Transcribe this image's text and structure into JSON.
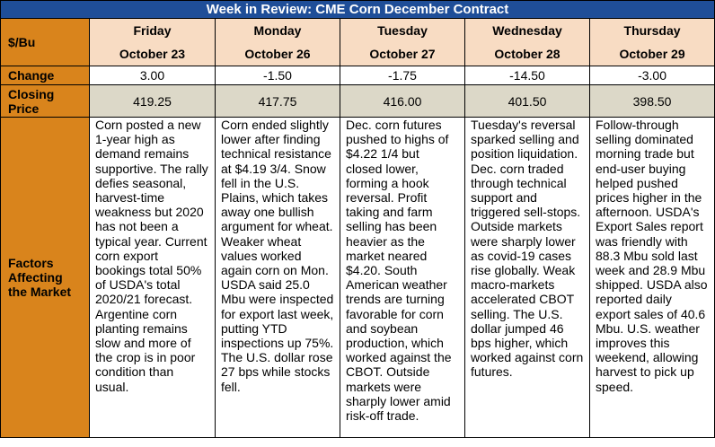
{
  "title": "Week in Review: CME Corn December Contract",
  "unit_label": "$/Bu",
  "days": [
    {
      "day": "Friday",
      "date": "October 23"
    },
    {
      "day": "Monday",
      "date": "October 26"
    },
    {
      "day": "Tuesday",
      "date": "October 27"
    },
    {
      "day": "Wednesday",
      "date": "October 28"
    },
    {
      "day": "Thursday",
      "date": "October 29"
    }
  ],
  "change_label": "Change",
  "changes": [
    "3.00",
    "-1.50",
    "-1.75",
    "-14.50",
    "-3.00"
  ],
  "closing_label_line1": "Closing",
  "closing_label_line2": "Price",
  "closing": [
    "419.25",
    "417.75",
    "416.00",
    "401.50",
    "398.50"
  ],
  "factors_label_line1": "Factors",
  "factors_label_line2": "Affecting",
  "factors_label_line3": "the Market",
  "factors": [
    "Corn posted a new 1-year high as demand remains supportive. The rally defies seasonal, harvest-time weakness but 2020 has not been a typical year. Current corn export bookings total 50% of USDA's total 2020/21 forecast. Argentine corn planting remains slow and more of the crop is in poor condition than usual.",
    "Corn ended slightly lower after finding technical resistance at $4.19 3/4. Snow fell in the U.S. Plains, which takes away one bullish argument for wheat. Weaker wheat values worked again corn on Mon. USDA said 25.0 Mbu were inspected for export last week, putting YTD inspections up 75%. The U.S. dollar rose 27 bps while stocks fell.",
    "Dec. corn futures pushed to highs of $4.22 1/4 but closed lower, forming a hook reversal. Profit taking and farm selling has been heavier as the market neared $4.20. South American weather trends are turning favorable for corn and soybean production, which worked against the CBOT. Outside markets were sharply lower amid risk-off trade.",
    "Tuesday's reversal sparked selling and position liquidation. Dec. corn traded through technical support and triggered sell-stops. Outside markets were sharply lower as covid-19 cases rise globally. Weak macro-markets accelerated CBOT selling. The U.S. dollar jumped 46 bps higher, which worked against corn futures.",
    "Follow-through selling dominated morning trade but end-user buying helped pushed prices higher in the afternoon. USDA's Export Sales report was friendly with 88.3 Mbu sold last week and 28.9 Mbu shipped. USDA also reported daily export  sales of 40.6 Mbu. U.S. weather improves this weekend, allowing harvest to pick up speed."
  ],
  "colors": {
    "title_bg": "#1f4e98",
    "label_bg": "#d9841c",
    "day_bg": "#f8dcc3",
    "closing_bg": "#dcd8c8"
  }
}
